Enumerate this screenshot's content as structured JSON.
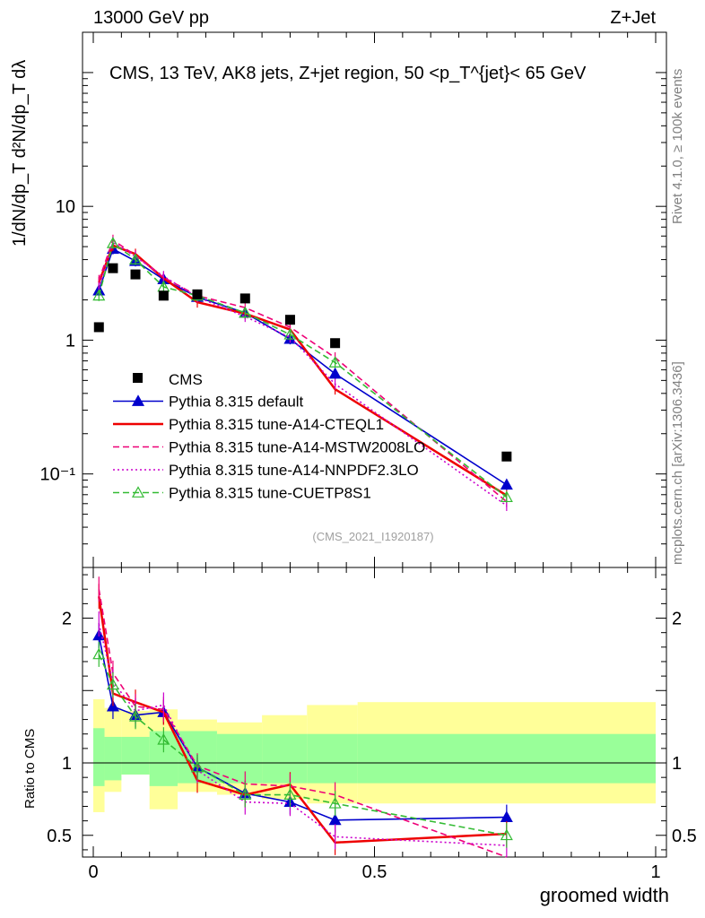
{
  "header": {
    "left": "13000 GeV pp",
    "right": "Z+Jet"
  },
  "side_labels": {
    "top": "Rivet 4.1.0, ≥ 100k events",
    "bottom": "mcplots.cern.ch [arXiv:1306.3436]"
  },
  "chart_data": [
    {
      "type": "line",
      "title": "CMS, 13 TeV, AK8 jets, Z+jet region, 50 <p_T^{jet}< 65 GeV",
      "ylabel": "1/dN/dp_T  d²N/dp_T dλ",
      "yscale": "log",
      "xlim": [
        0,
        1
      ],
      "ylim": [
        0.02,
        200
      ],
      "ytick_labels": [
        "10⁻¹",
        "1",
        "10"
      ],
      "reference": "(CMS_2021_I1920187)",
      "data": {
        "name": "CMS",
        "x": [
          0.01,
          0.035,
          0.075,
          0.125,
          0.185,
          0.27,
          0.35,
          0.43,
          0.735
        ],
        "y": [
          1.25,
          3.45,
          3.1,
          2.15,
          2.2,
          2.05,
          1.42,
          0.95,
          0.135
        ]
      },
      "series": [
        {
          "name": "Pythia 8.315 default",
          "color": "#0000cc",
          "style": "solid",
          "marker": "triangle-filled",
          "x": [
            0.01,
            0.035,
            0.075,
            0.125,
            0.185,
            0.27,
            0.35,
            0.43,
            0.735
          ],
          "y": [
            2.35,
            4.8,
            3.9,
            2.85,
            2.1,
            1.6,
            1.02,
            0.56,
            0.083
          ]
        },
        {
          "name": "Pythia 8.315 tune-A14-CTEQL1",
          "color": "#ee0000",
          "style": "solid",
          "marker": "none",
          "x": [
            0.01,
            0.035,
            0.075,
            0.125,
            0.185,
            0.27,
            0.35,
            0.43,
            0.735
          ],
          "y": [
            2.7,
            5.1,
            4.4,
            2.9,
            1.92,
            1.58,
            1.2,
            0.43,
            0.069
          ]
        },
        {
          "name": "Pythia 8.315 tune-A14-MSTW2008LO",
          "color": "#ee0077",
          "style": "dashed",
          "marker": "none",
          "x": [
            0.01,
            0.035,
            0.075,
            0.125,
            0.185,
            0.27,
            0.35,
            0.43,
            0.735
          ],
          "y": [
            2.8,
            5.6,
            4.3,
            2.95,
            2.15,
            1.75,
            1.25,
            0.74,
            0.062
          ]
        },
        {
          "name": "Pythia 8.315 tune-A14-NNPDF2.3LO",
          "color": "#cc00cc",
          "style": "dotted",
          "marker": "none",
          "x": [
            0.01,
            0.035,
            0.075,
            0.125,
            0.185,
            0.27,
            0.35,
            0.43,
            0.735
          ],
          "y": [
            2.45,
            5.4,
            4.2,
            3.0,
            2.1,
            1.5,
            1.05,
            0.47,
            0.058
          ]
        },
        {
          "name": "Pythia 8.315 tune-CUETP8S1",
          "color": "#33bb33",
          "style": "dashed",
          "marker": "triangle-open",
          "x": [
            0.01,
            0.035,
            0.075,
            0.125,
            0.185,
            0.27,
            0.35,
            0.43,
            0.735
          ],
          "y": [
            2.15,
            5.3,
            4.0,
            2.5,
            2.15,
            1.6,
            1.1,
            0.68,
            0.067
          ]
        }
      ]
    },
    {
      "type": "line",
      "ylabel": "Ratio to CMS",
      "xlabel": "groomed width",
      "xlim": [
        0,
        1
      ],
      "ylim": [
        0.35,
        2.35
      ],
      "x_ticks": [
        0,
        0.5,
        1
      ],
      "x_tick_labels": [
        "0",
        "0.5",
        "1"
      ],
      "y_ticks": [
        0.5,
        1,
        2
      ],
      "y_tick_labels": [
        "0.5",
        "1",
        "2"
      ],
      "bins": [
        0,
        0.02,
        0.05,
        0.1,
        0.15,
        0.22,
        0.3,
        0.38,
        0.47,
        1.0
      ],
      "band_inner": {
        "color": "#99ff99",
        "low": [
          0.84,
          0.88,
          0.92,
          0.84,
          0.86,
          0.86,
          0.86,
          0.86,
          0.86
        ],
        "high": [
          1.24,
          1.18,
          1.18,
          1.22,
          1.22,
          1.2,
          1.2,
          1.2,
          1.2
        ]
      },
      "band_outer": {
        "color": "#ffff99",
        "low": [
          0.66,
          0.8,
          0.92,
          0.68,
          0.8,
          0.78,
          0.75,
          0.72,
          0.72
        ],
        "high": [
          1.44,
          1.38,
          1.36,
          1.37,
          1.3,
          1.28,
          1.33,
          1.4,
          1.42
        ]
      },
      "series": [
        {
          "name": "Pythia 8.315 default",
          "x": [
            0.01,
            0.035,
            0.075,
            0.125,
            0.185,
            0.27,
            0.35,
            0.43,
            0.735
          ],
          "y": [
            1.88,
            1.39,
            1.33,
            1.35,
            0.97,
            0.79,
            0.73,
            0.605,
            0.625
          ]
        },
        {
          "name": "Pythia 8.315 tune-A14-CTEQL1",
          "x": [
            0.01,
            0.035,
            0.075,
            0.125,
            0.185,
            0.27,
            0.35,
            0.43,
            0.735
          ],
          "y": [
            2.15,
            1.48,
            1.42,
            1.35,
            0.88,
            0.78,
            0.85,
            0.45,
            0.51
          ]
        },
        {
          "name": "Pythia 8.315 tune-A14-MSTW2008LO",
          "x": [
            0.01,
            0.035,
            0.075,
            0.125,
            0.185,
            0.27,
            0.35,
            0.43,
            0.735
          ],
          "y": [
            2.2,
            1.62,
            1.39,
            1.37,
            0.98,
            0.855,
            0.84,
            0.78,
            0.34
          ]
        },
        {
          "name": "Pythia 8.315 tune-A14-NNPDF2.3LO",
          "x": [
            0.01,
            0.035,
            0.075,
            0.125,
            0.185,
            0.27,
            0.35,
            0.43,
            0.735
          ],
          "y": [
            1.96,
            1.56,
            1.36,
            1.4,
            0.95,
            0.73,
            0.72,
            0.49,
            0.43
          ]
        },
        {
          "name": "Pythia 8.315 tune-CUETP8S1",
          "x": [
            0.01,
            0.035,
            0.075,
            0.125,
            0.185,
            0.27,
            0.35,
            0.43,
            0.735
          ],
          "y": [
            1.75,
            1.54,
            1.32,
            1.16,
            0.97,
            0.78,
            0.78,
            0.72,
            0.5
          ]
        }
      ]
    }
  ]
}
